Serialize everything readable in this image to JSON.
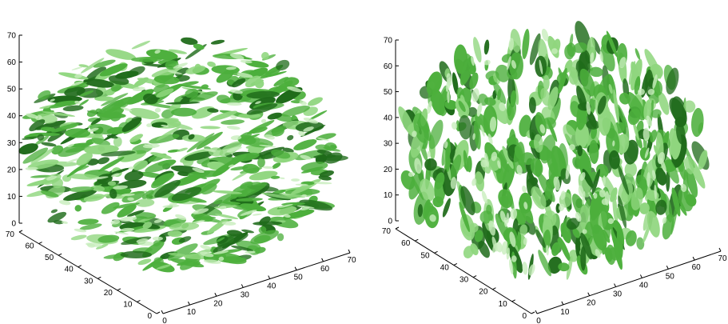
{
  "colors": {
    "background": "#ffffff",
    "axis": "#000000",
    "isosurface_light": "#8fd67e",
    "isosurface_mid": "#4caf3c",
    "isosurface_dark": "#1f6b1a"
  },
  "panels": [
    {
      "id": "left",
      "z_ticks": [
        "0",
        "10",
        "20",
        "30",
        "40",
        "50",
        "60",
        "70"
      ],
      "y_ticks": [
        "0",
        "10",
        "20",
        "30",
        "40",
        "50",
        "60",
        "70"
      ],
      "x_ticks": [
        "0",
        "10",
        "20",
        "30",
        "40",
        "50",
        "60",
        "70"
      ],
      "visual": "isosurface-blobs-elongated-horizontal"
    },
    {
      "id": "right",
      "z_ticks": [
        "0",
        "10",
        "20",
        "30",
        "40",
        "50",
        "60",
        "70"
      ],
      "y_ticks": [
        "0",
        "10",
        "20",
        "30",
        "40",
        "50",
        "60",
        "70"
      ],
      "x_ticks": [
        "0",
        "10",
        "20",
        "30",
        "40",
        "50",
        "60",
        "70"
      ],
      "visual": "isosurface-blobs-elongated-vertical"
    }
  ]
}
